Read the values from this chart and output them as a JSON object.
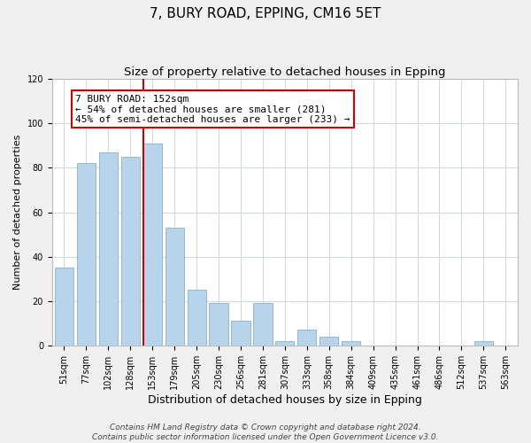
{
  "title": "7, BURY ROAD, EPPING, CM16 5ET",
  "subtitle": "Size of property relative to detached houses in Epping",
  "xlabel": "Distribution of detached houses by size in Epping",
  "ylabel": "Number of detached properties",
  "categories": [
    "51sqm",
    "77sqm",
    "102sqm",
    "128sqm",
    "153sqm",
    "179sqm",
    "205sqm",
    "230sqm",
    "256sqm",
    "281sqm",
    "307sqm",
    "333sqm",
    "358sqm",
    "384sqm",
    "409sqm",
    "435sqm",
    "461sqm",
    "486sqm",
    "512sqm",
    "537sqm",
    "563sqm"
  ],
  "values": [
    35,
    82,
    87,
    85,
    91,
    53,
    25,
    19,
    11,
    19,
    2,
    7,
    4,
    2,
    0,
    0,
    0,
    0,
    0,
    2,
    0
  ],
  "bar_color": "#b8d4ea",
  "bar_edge_color": "#8ab0cc",
  "vline_x_index": 4,
  "vline_color": "#cc0000",
  "annotation_text": "7 BURY ROAD: 152sqm\n← 54% of detached houses are smaller (281)\n45% of semi-detached houses are larger (233) →",
  "annotation_box_color": "#ffffff",
  "annotation_box_edge_color": "#cc0000",
  "ylim": [
    0,
    120
  ],
  "yticks": [
    0,
    20,
    40,
    60,
    80,
    100,
    120
  ],
  "footer_line1": "Contains HM Land Registry data © Crown copyright and database right 2024.",
  "footer_line2": "Contains public sector information licensed under the Open Government Licence v3.0.",
  "background_color": "#f0f0f0",
  "plot_background_color": "#ffffff",
  "grid_color": "#d0d8e0",
  "title_fontsize": 11,
  "subtitle_fontsize": 9.5,
  "xlabel_fontsize": 9,
  "ylabel_fontsize": 8,
  "tick_fontsize": 7,
  "footer_fontsize": 6.5,
  "annotation_fontsize": 8
}
